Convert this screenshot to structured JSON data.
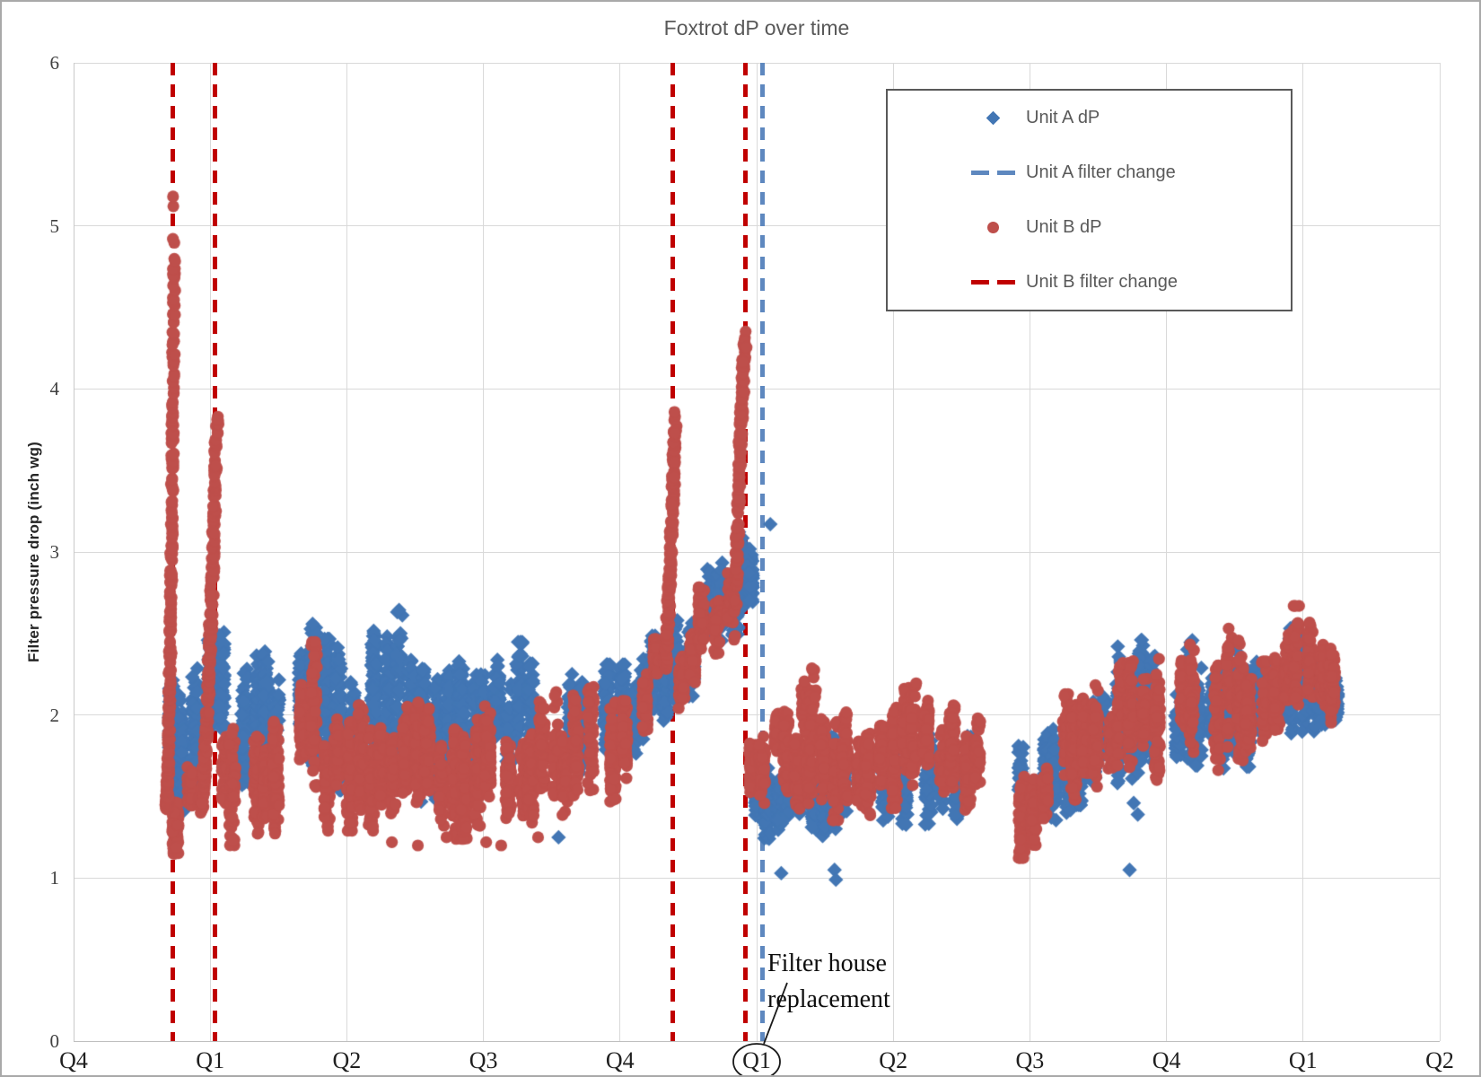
{
  "window": {
    "background": "#FFFFFF",
    "border_color": "#A9A9A9"
  },
  "chart_data": {
    "type": "scatter",
    "title": "Foxtrot dP over time",
    "xlabel": "",
    "ylabel": "Filter pressure drop (inch wg)",
    "ylim": [
      0,
      6
    ],
    "xlim_quarters": [
      0,
      10
    ],
    "grid": true,
    "legend_position": "top-right",
    "ytick_labels": [
      "0",
      "1",
      "2",
      "3",
      "4",
      "5",
      "6"
    ],
    "xtick_labels": [
      "Q4",
      "Q1",
      "Q2",
      "Q3",
      "Q4",
      "Q1",
      "Q2",
      "Q3",
      "Q4",
      "Q1",
      "Q2"
    ],
    "colors": {
      "unit_a_marker": "#4276B4",
      "unit_a_change_line": "#5E88BF",
      "unit_b_marker": "#BE4F4B",
      "unit_b_change_line": "#C00000",
      "gridline": "#D9D9D9",
      "axis_line": "#BFBFBF",
      "title_text": "#595959",
      "legend_text": "#595959",
      "tick_text": "#1f1f1f"
    },
    "series": [
      {
        "name": "Unit A dP",
        "marker": "diamond",
        "color": "#4276B4",
        "bands": [
          [
            0.68,
            0.92,
            1.45,
            2.25,
            1.5,
            2.3,
            300
          ],
          [
            0.98,
            1.14,
            1.6,
            2.5,
            1.6,
            2.55,
            190
          ],
          [
            1.14,
            1.62,
            1.6,
            2.3,
            1.6,
            2.35,
            360
          ],
          [
            1.62,
            1.82,
            1.75,
            2.6,
            1.75,
            2.7,
            210
          ],
          [
            1.82,
            2.16,
            1.6,
            2.4,
            1.6,
            2.45,
            300
          ],
          [
            2.16,
            2.42,
            1.55,
            2.5,
            1.55,
            2.6,
            250
          ],
          [
            2.42,
            2.7,
            1.5,
            2.3,
            1.5,
            2.3,
            250
          ],
          [
            2.7,
            3.15,
            1.6,
            2.4,
            1.6,
            2.4,
            360
          ],
          [
            3.15,
            3.67,
            1.55,
            2.4,
            1.55,
            2.35,
            380
          ],
          [
            3.67,
            4.05,
            1.6,
            2.25,
            1.65,
            2.25,
            300
          ],
          [
            4.05,
            4.55,
            1.75,
            2.3,
            2.15,
            2.6,
            330
          ],
          [
            4.55,
            4.95,
            2.2,
            2.72,
            2.7,
            3.1,
            280
          ],
          [
            4.9,
            4.99,
            2.55,
            3.15,
            2.6,
            3.15,
            100
          ],
          [
            4.98,
            5.12,
            1.0,
            1.78,
            1.05,
            1.78,
            130
          ],
          [
            5.12,
            5.7,
            1.25,
            1.8,
            1.3,
            1.82,
            430
          ],
          [
            5.7,
            6.32,
            1.3,
            1.9,
            1.35,
            1.95,
            430
          ],
          [
            6.32,
            6.68,
            1.3,
            1.88,
            1.3,
            1.85,
            260
          ],
          [
            6.9,
            7.32,
            1.3,
            1.9,
            1.4,
            2.0,
            300
          ],
          [
            7.32,
            7.6,
            1.5,
            2.05,
            1.55,
            2.1,
            220
          ],
          [
            7.6,
            8.04,
            1.55,
            2.35,
            1.65,
            2.45,
            400
          ],
          [
            8.04,
            8.62,
            1.65,
            2.4,
            1.75,
            2.45,
            400
          ],
          [
            8.62,
            9.12,
            1.75,
            2.45,
            1.85,
            2.5,
            360
          ],
          [
            9.12,
            9.28,
            1.9,
            2.35,
            1.95,
            2.3,
            140
          ]
        ],
        "ramps": [],
        "outliers": [
          [
            3.55,
            1.25
          ],
          [
            5.1,
            3.17
          ],
          [
            5.18,
            1.03
          ],
          [
            5.57,
            1.05
          ],
          [
            5.58,
            0.99
          ],
          [
            7.73,
            1.05
          ],
          [
            7.76,
            1.46
          ],
          [
            7.79,
            1.39
          ]
        ]
      },
      {
        "name": "Unit B dP",
        "marker": "circle",
        "color": "#BE4F4B",
        "bands": [
          [
            0.72,
            0.81,
            1.2,
            1.5,
            1.22,
            1.52,
            80
          ],
          [
            0.81,
            0.93,
            1.3,
            1.6,
            1.35,
            1.65,
            50
          ],
          [
            1.06,
            1.62,
            1.25,
            1.95,
            1.3,
            2.0,
            600
          ],
          [
            1.62,
            1.8,
            1.5,
            2.35,
            1.5,
            2.4,
            180
          ],
          [
            1.8,
            2.3,
            1.35,
            2.0,
            1.35,
            2.0,
            420
          ],
          [
            2.3,
            3.0,
            1.3,
            2.0,
            1.3,
            2.05,
            540
          ],
          [
            3.0,
            3.65,
            1.35,
            2.05,
            1.4,
            2.1,
            500
          ],
          [
            3.65,
            4.15,
            1.5,
            2.1,
            1.55,
            2.15,
            400
          ],
          [
            4.15,
            4.33,
            1.8,
            2.2,
            2.15,
            2.6,
            150
          ],
          [
            4.41,
            4.64,
            1.95,
            2.4,
            2.45,
            2.95,
            170
          ],
          [
            4.64,
            4.85,
            2.35,
            2.9,
            2.45,
            3.0,
            55
          ],
          [
            4.93,
            5.01,
            1.45,
            1.85,
            1.45,
            1.87,
            90
          ],
          [
            5.01,
            5.44,
            1.45,
            2.0,
            1.5,
            2.05,
            310
          ],
          [
            5.3,
            5.44,
            1.75,
            2.3,
            1.75,
            2.32,
            70
          ],
          [
            5.44,
            6.3,
            1.4,
            2.05,
            1.5,
            2.15,
            620
          ],
          [
            6.3,
            6.68,
            1.45,
            2.0,
            1.45,
            2.0,
            270
          ],
          [
            6.9,
            7.14,
            1.15,
            1.62,
            1.35,
            1.95,
            160
          ],
          [
            7.14,
            7.62,
            1.5,
            2.2,
            1.6,
            2.25,
            330
          ],
          [
            7.62,
            8.32,
            1.55,
            2.25,
            1.7,
            2.4,
            500
          ],
          [
            8.32,
            8.92,
            1.7,
            2.45,
            1.8,
            2.55,
            460
          ],
          [
            8.92,
            9.27,
            1.9,
            2.6,
            2.0,
            2.67,
            310
          ]
        ],
        "ramps": [
          [
            0.68,
            0.737,
            1.45,
            4.85,
            1.7,
            270,
            0.02,
            0.1
          ],
          [
            0.93,
            1.05,
            1.45,
            3.83,
            1.6,
            230,
            0.025,
            0.12
          ],
          [
            4.33,
            4.405,
            2.3,
            3.81,
            1.3,
            170,
            0.025,
            0.14
          ],
          [
            4.845,
            4.915,
            2.4,
            4.3,
            0.6,
            150,
            0.025,
            0.18
          ]
        ],
        "outliers": [
          [
            0.727,
            4.92
          ],
          [
            0.73,
            5.12
          ],
          [
            0.728,
            5.18
          ],
          [
            0.94,
            1.46
          ],
          [
            2.33,
            1.22
          ],
          [
            2.52,
            1.2
          ],
          [
            2.73,
            1.25
          ],
          [
            3.02,
            1.22
          ],
          [
            3.13,
            1.2
          ],
          [
            3.4,
            1.25
          ]
        ]
      }
    ],
    "event_lines": [
      {
        "name": "Unit A filter change",
        "color": "#5E88BF",
        "x_quarters": [
          5.04
        ]
      },
      {
        "name": "Unit B filter change",
        "color": "#C00000",
        "x_quarters": [
          0.723,
          1.037,
          4.385,
          4.92
        ]
      }
    ],
    "annotation": {
      "line1": "Filter house",
      "line2": "replacement",
      "points_to_xtick": "Q1",
      "points_to_xtick_index": 5
    }
  },
  "legend": {
    "entries": [
      {
        "label": "Unit A dP",
        "marker": "diamond",
        "color": "#4276B4"
      },
      {
        "label": "Unit A filter change",
        "marker": "dashes",
        "color": "#5E88BF"
      },
      {
        "label": "Unit B dP",
        "marker": "circle",
        "color": "#BE4F4B"
      },
      {
        "label": "Unit B filter change",
        "marker": "dashes",
        "color": "#C00000"
      }
    ]
  }
}
